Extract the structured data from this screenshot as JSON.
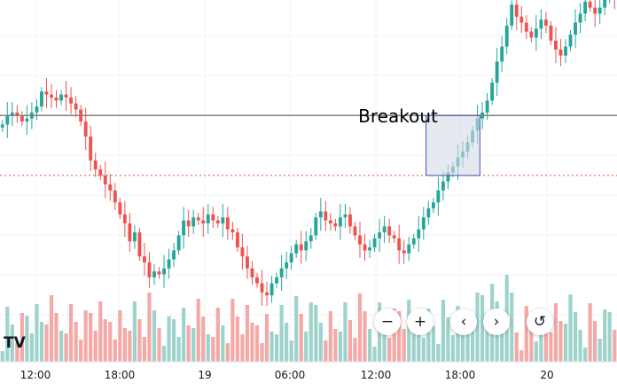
{
  "colors": {
    "up": "#26a69a",
    "down": "#ef5350",
    "up_volume": "#9ed3cc",
    "down_volume": "#f4a9a7",
    "breakout_line": "#808080",
    "support_line": "#e0513f",
    "box_border": "#3f51b5",
    "box_fill": "#d6dbe6",
    "grid": "#f0f3fa"
  },
  "annotations": {
    "breakout_label": "Breakout"
  },
  "controls": {
    "zoom_out": "−",
    "zoom_in": "+",
    "scroll_left": "‹",
    "scroll_right": "›",
    "reset": "↺"
  },
  "logo": {
    "text": "TV",
    "icon": "tradingview-logo-icon"
  },
  "chart_data": {
    "type": "candlestick",
    "title": "",
    "x_labels": [
      "12:00",
      "18:00",
      "19",
      "06:00",
      "12:00",
      "18:00",
      "20"
    ],
    "ylim": [
      0,
      100
    ],
    "breakout_level": 65,
    "support_level": 45,
    "breakout_box": {
      "from_bar": 87,
      "to_bar": 97,
      "low": 45,
      "high": 65
    },
    "closes": [
      62,
      65,
      66,
      65,
      63,
      64,
      66,
      68,
      73,
      72,
      71,
      70,
      72,
      71,
      69,
      67,
      63,
      58,
      50,
      47,
      45,
      42,
      40,
      36,
      32,
      29,
      23,
      26,
      18,
      16,
      11,
      13,
      12,
      14,
      17,
      20,
      25,
      30,
      28,
      31,
      30,
      29,
      32,
      30,
      29,
      31,
      27,
      26,
      21,
      18,
      14,
      11,
      9,
      6,
      5,
      9,
      11,
      14,
      16,
      19,
      22,
      20,
      23,
      25,
      31,
      33,
      30,
      29,
      28,
      31,
      32,
      28,
      25,
      22,
      20,
      21,
      24,
      26,
      28,
      25,
      24,
      20,
      19,
      22,
      24,
      27,
      31,
      34,
      36,
      40,
      43,
      46,
      48,
      51,
      53,
      56,
      60,
      64,
      66,
      70,
      76,
      83,
      88,
      95,
      102,
      98,
      96,
      93,
      91,
      94,
      97,
      95,
      90,
      87,
      85,
      88,
      92,
      96,
      99,
      103,
      101,
      99,
      101,
      104,
      106,
      105
    ]
  }
}
